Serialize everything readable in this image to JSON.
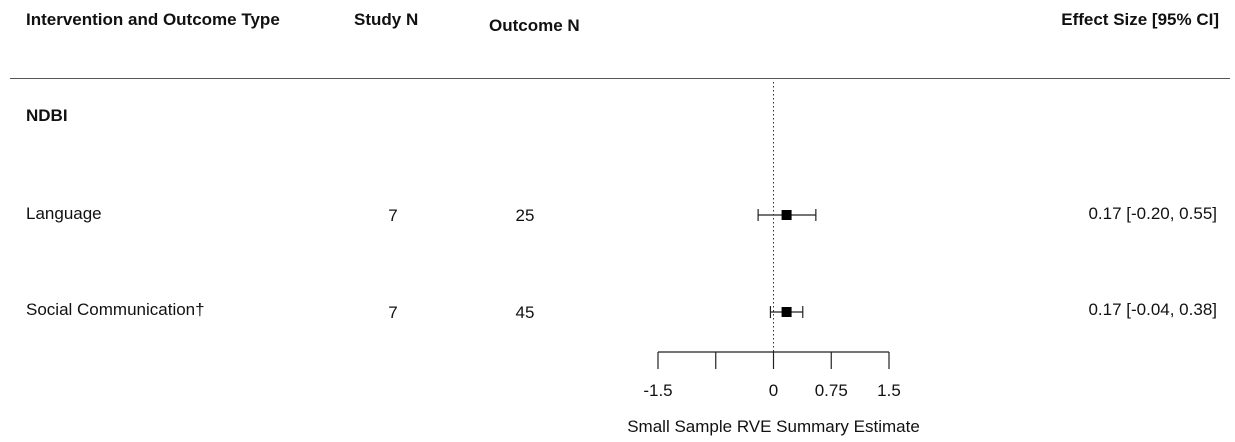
{
  "header": {
    "col_label": "Intervention and Outcome Type",
    "col_study_n": "Study N",
    "col_outcome_n": "Outcome N",
    "col_effect": "Effect Size [95% CI]"
  },
  "group": {
    "label": "NDBI"
  },
  "rows": [
    {
      "label": "Language",
      "study_n": "7",
      "outcome_n": "25",
      "effect_text": "0.17 [-0.20, 0.55]"
    },
    {
      "label": "Social Communication†",
      "study_n": "7",
      "outcome_n": "45",
      "effect_text": "0.17 [-0.04, 0.38]"
    }
  ],
  "chart_data": {
    "type": "forest",
    "xlabel": "Small Sample RVE Summary Estimate",
    "xlim": [
      -1.5,
      1.5
    ],
    "ticks": [
      -1.5,
      -0.75,
      0,
      0.75,
      1.5
    ],
    "tick_labels": [
      "-1.5",
      "",
      "0",
      "0.75",
      "1.5"
    ],
    "reference_line": 0,
    "series": [
      {
        "name": "Language",
        "estimate": 0.17,
        "ci_low": -0.2,
        "ci_high": 0.55
      },
      {
        "name": "Social Communication†",
        "estimate": 0.17,
        "ci_low": -0.04,
        "ci_high": 0.38
      }
    ]
  }
}
